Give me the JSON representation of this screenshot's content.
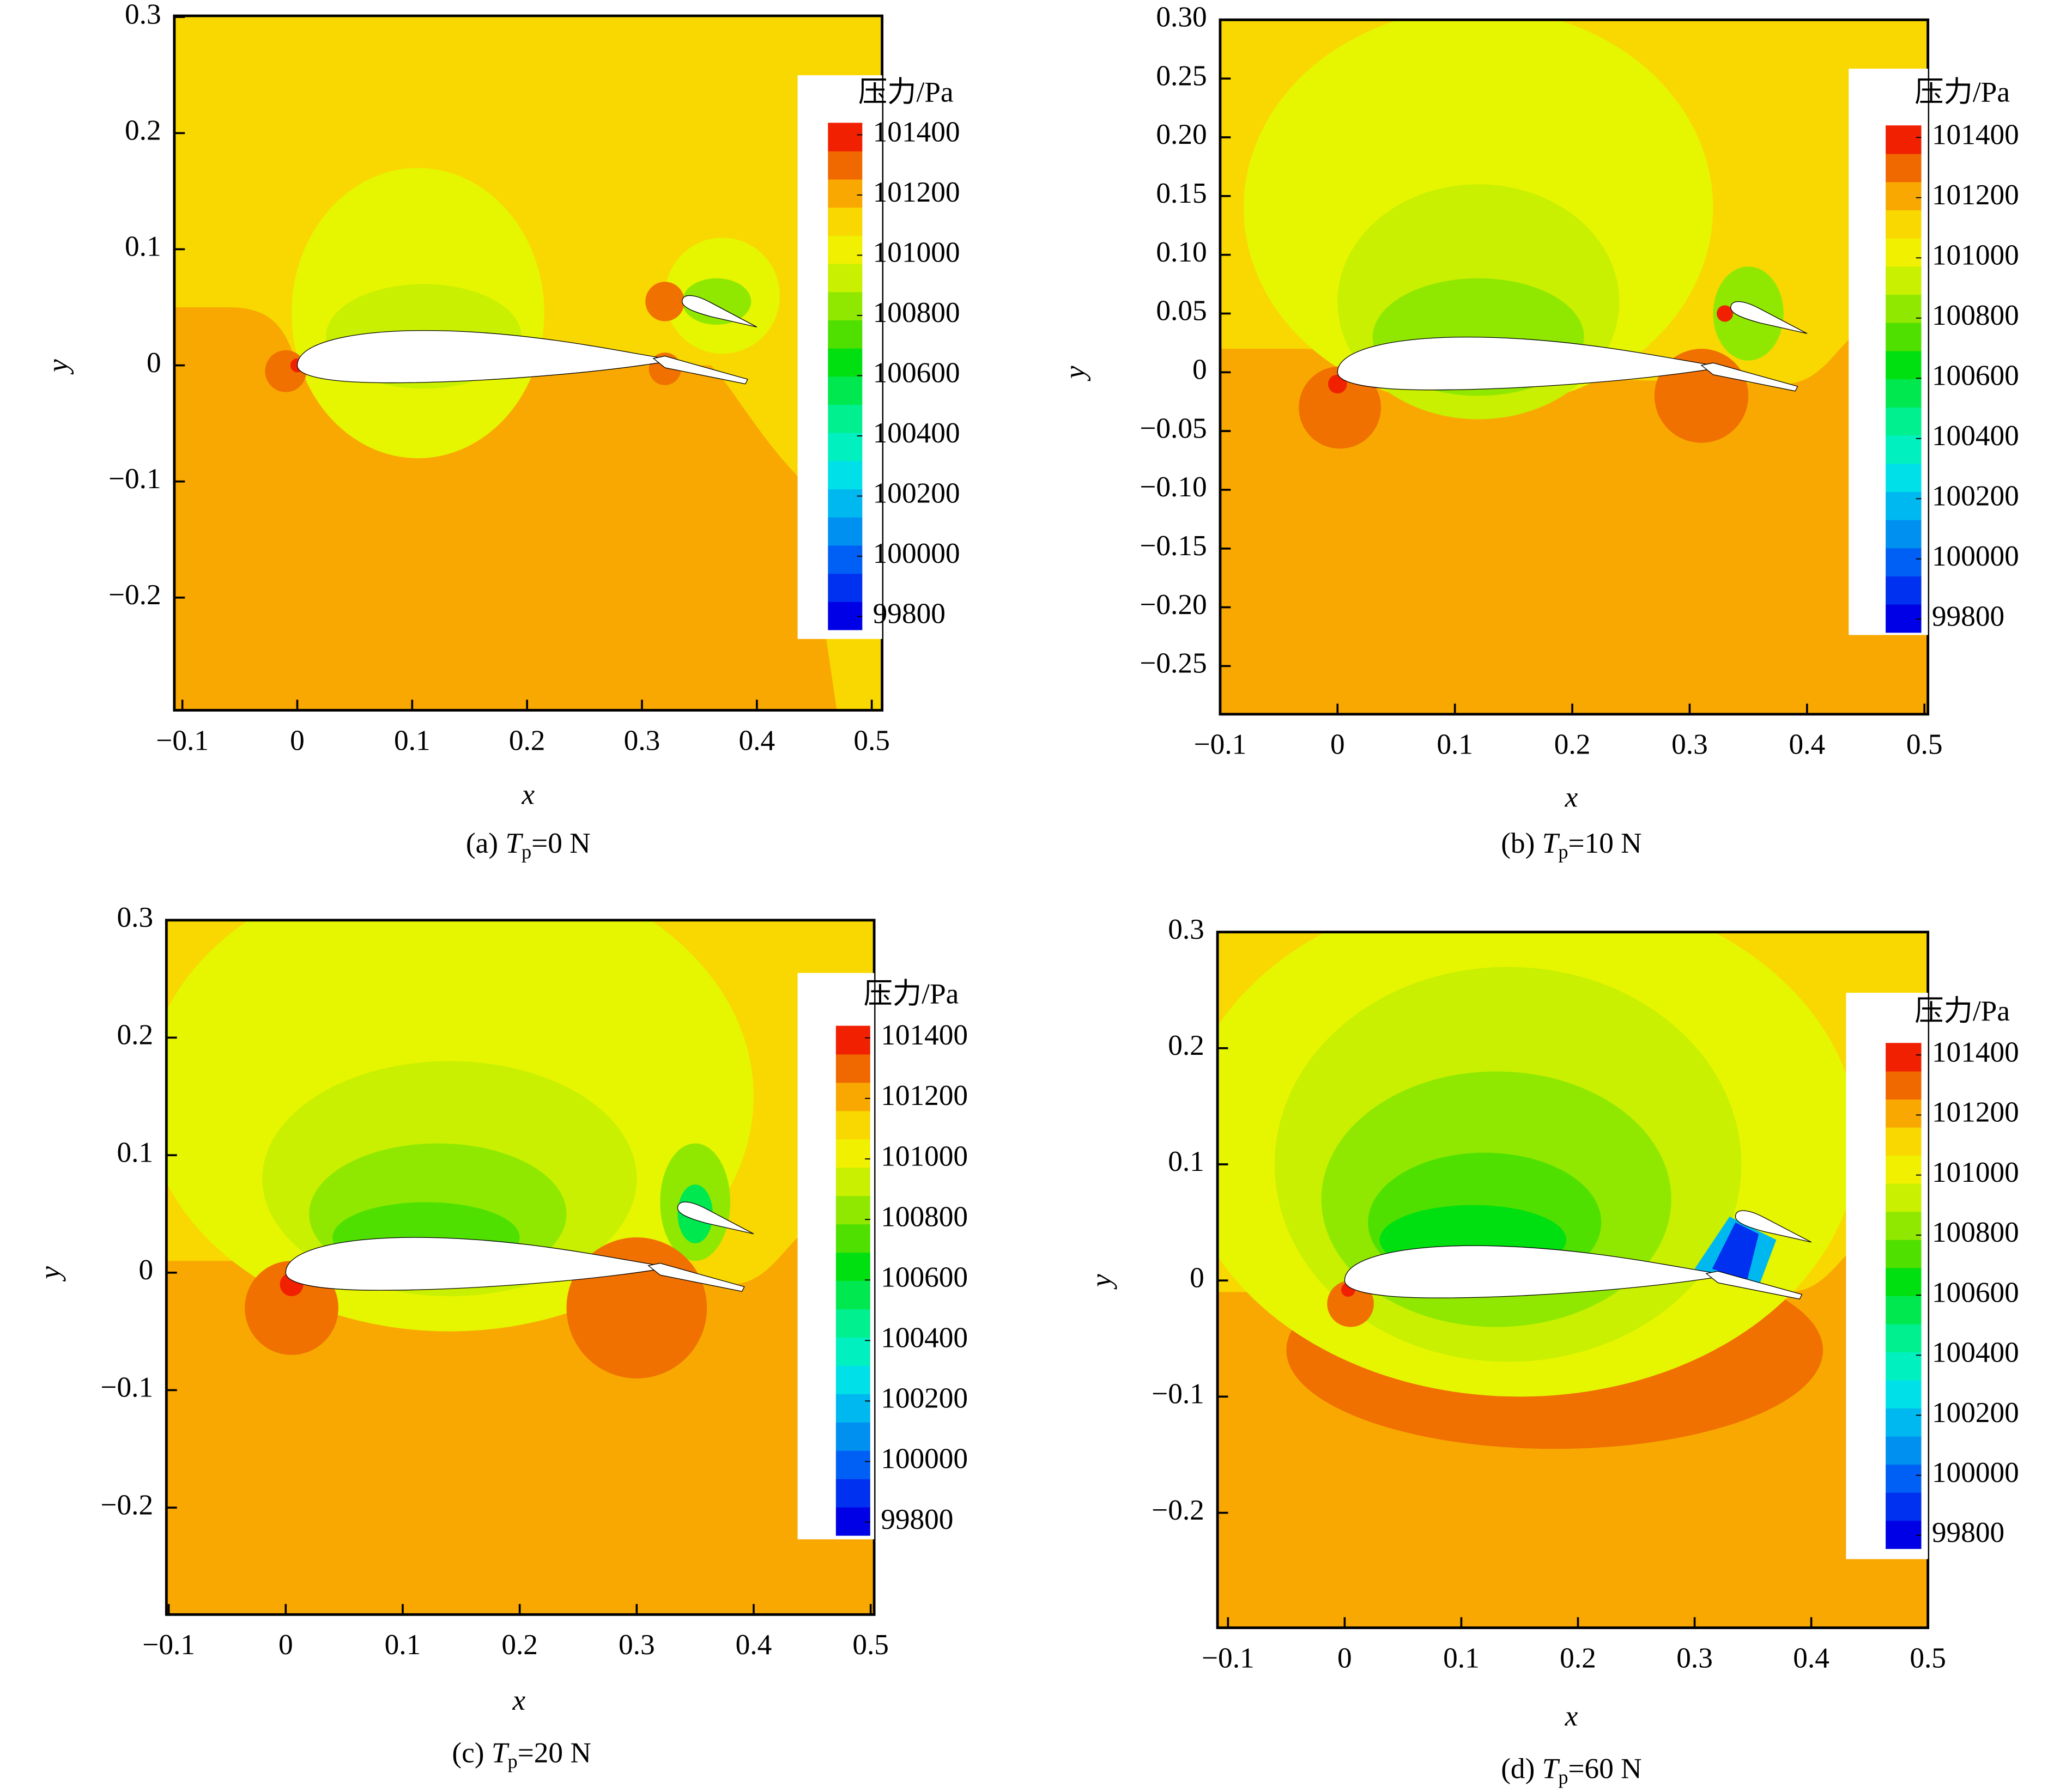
{
  "chart_data": [
    {
      "type": "contour",
      "x_label": "x",
      "y_label": "y",
      "caption": {
        "prefix": "(a) ",
        "symbol": "T",
        "subscript": "p",
        "suffix": "=0 N"
      },
      "xlim": [
        -0.107,
        0.509
      ],
      "ylim": [
        -0.297,
        0.301
      ],
      "xticks": [
        {
          "value": -0.1,
          "label": "−0.1"
        },
        0,
        0.1,
        0.2,
        0.3,
        0.4,
        0.5
      ],
      "yticks": [
        {
          "value": -0.2,
          "label": "−0.2"
        },
        {
          "value": -0.1,
          "label": "−0.1"
        },
        0,
        0.1,
        0.2,
        0.3
      ],
      "colorbar": {
        "title": "压力/Pa",
        "clim": [
          99756,
          101440
        ],
        "ticks": [
          99800,
          100000,
          100200,
          100400,
          100600,
          100800,
          101000,
          101200,
          101400
        ],
        "colors": [
          "#0000e6",
          "#0030f0",
          "#0060f5",
          "#0090f0",
          "#00b8f0",
          "#00e0e8",
          "#00f0c0",
          "#00f090",
          "#00e850",
          "#00e010",
          "#50e000",
          "#90e800",
          "#c8f000",
          "#f0f000",
          "#f8d800",
          "#f8a800",
          "#f06800",
          "#f02000"
        ]
      }
    },
    {
      "type": "contour",
      "x_label": "x",
      "y_label": "y",
      "caption": {
        "prefix": "(b) ",
        "symbol": "T",
        "subscript": "p",
        "suffix": "=10 N"
      },
      "xlim": [
        -0.1,
        0.503
      ],
      "ylim": [
        -0.291,
        0.3
      ],
      "xticks": [
        {
          "value": -0.1,
          "label": "−0.1"
        },
        0,
        0.1,
        0.2,
        0.3,
        0.4,
        0.5
      ],
      "yticks": [
        {
          "value": -0.25,
          "label": "−0.25"
        },
        {
          "value": -0.2,
          "label": "−0.20"
        },
        {
          "value": -0.15,
          "label": "−0.15"
        },
        {
          "value": -0.1,
          "label": "−0.10"
        },
        {
          "value": -0.05,
          "label": "−0.05"
        },
        0,
        0.05,
        {
          "value": 0.1,
          "label": "0.10"
        },
        0.15,
        {
          "value": 0.2,
          "label": "0.20"
        },
        0.25,
        {
          "value": 0.3,
          "label": "0.30"
        }
      ],
      "colorbar": {
        "title": "压力/Pa",
        "clim": [
          99756,
          101440
        ],
        "ticks": [
          99800,
          100000,
          100200,
          100400,
          100600,
          100800,
          101000,
          101200,
          101400
        ],
        "colors": [
          "#0000e6",
          "#0030f0",
          "#0060f5",
          "#0090f0",
          "#00b8f0",
          "#00e0e8",
          "#00f0c0",
          "#00f090",
          "#00e850",
          "#00e010",
          "#50e000",
          "#90e800",
          "#c8f000",
          "#f0f000",
          "#f8d800",
          "#f8a800",
          "#f06800",
          "#f02000"
        ]
      }
    },
    {
      "type": "contour",
      "x_label": "x",
      "y_label": "y",
      "caption": {
        "prefix": "(c) ",
        "symbol": "T",
        "subscript": "p",
        "suffix": "=20 N"
      },
      "xlim": [
        -0.102,
        0.503
      ],
      "ylim": [
        -0.291,
        0.3
      ],
      "xticks": [
        {
          "value": -0.1,
          "label": "−0.1"
        },
        0,
        0.1,
        0.2,
        0.3,
        0.4,
        0.5
      ],
      "yticks": [
        {
          "value": -0.2,
          "label": "−0.2"
        },
        {
          "value": -0.1,
          "label": "−0.1"
        },
        0,
        0.1,
        0.2,
        0.3
      ],
      "colorbar": {
        "title": "压力/Pa",
        "clim": [
          99756,
          101440
        ],
        "ticks": [
          99800,
          100000,
          100200,
          100400,
          100600,
          100800,
          101000,
          101200,
          101400
        ],
        "colors": [
          "#0000e6",
          "#0030f0",
          "#0060f5",
          "#0090f0",
          "#00b8f0",
          "#00e0e8",
          "#00f0c0",
          "#00f090",
          "#00e850",
          "#00e010",
          "#50e000",
          "#90e800",
          "#c8f000",
          "#f0f000",
          "#f8d800",
          "#f8a800",
          "#f06800",
          "#f02000"
        ]
      }
    },
    {
      "type": "contour",
      "x_label": "x",
      "y_label": "y",
      "caption": {
        "prefix": "(d) ",
        "symbol": "T",
        "subscript": "p",
        "suffix": "=60 N"
      },
      "xlim": [
        -0.109,
        0.5
      ],
      "ylim": [
        -0.299,
        0.3
      ],
      "xticks": [
        {
          "value": -0.1,
          "label": "−0.1"
        },
        0,
        0.1,
        0.2,
        0.3,
        0.4,
        0.5
      ],
      "yticks": [
        {
          "value": -0.2,
          "label": "−0.2"
        },
        {
          "value": -0.1,
          "label": "−0.1"
        },
        0,
        0.1,
        0.2,
        0.3
      ],
      "colorbar": {
        "title": "压力/Pa",
        "clim": [
          99756,
          101440
        ],
        "ticks": [
          99800,
          100000,
          100200,
          100400,
          100600,
          100800,
          101000,
          101200,
          101400
        ],
        "colors": [
          "#0000e6",
          "#0030f0",
          "#0060f5",
          "#0090f0",
          "#00b8f0",
          "#00e0e8",
          "#00f0c0",
          "#00f090",
          "#00e850",
          "#00e010",
          "#50e000",
          "#90e800",
          "#c8f000",
          "#f0f000",
          "#f8d800",
          "#f8a800",
          "#f06800",
          "#f02000"
        ]
      }
    }
  ]
}
